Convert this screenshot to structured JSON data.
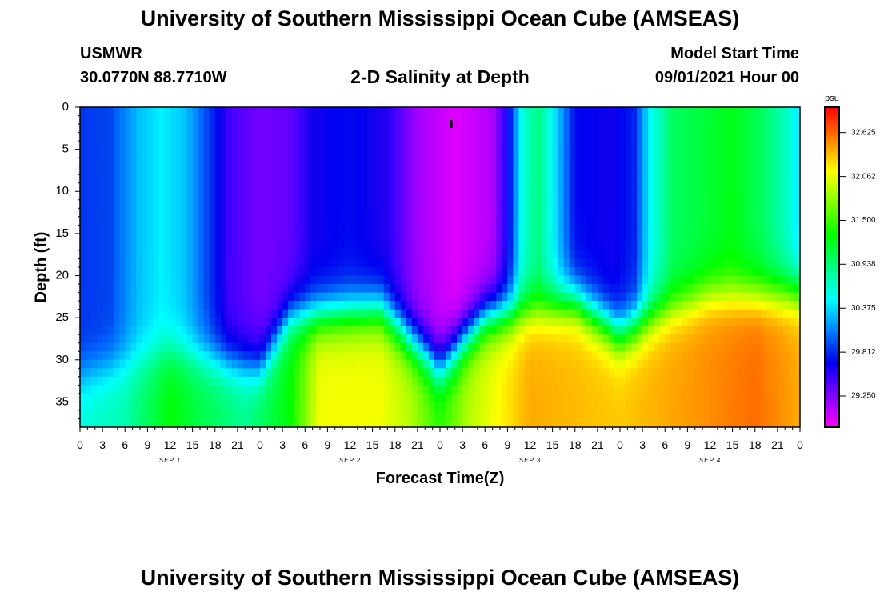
{
  "header": {
    "title": "University of Southern Mississippi Ocean Cube (AMSEAS)",
    "station": "USMWR",
    "coordinates": "30.0770N  88.7710W",
    "plot_title": "2-D Salinity at Depth",
    "model_start_label": "Model Start Time",
    "model_start_value": "09/01/2021 Hour 00"
  },
  "footer": {
    "title": "University of Southern Mississippi Ocean Cube (AMSEAS)"
  },
  "colors": {
    "background": "#ffffff",
    "frame": "#000000"
  },
  "chart_data": {
    "type": "heatmap",
    "title": "2-D Salinity at Depth",
    "xlabel": "Forecast Time(Z)",
    "ylabel": "Depth (ft)",
    "x_range_hours": [
      0,
      96
    ],
    "y_range_ft": [
      0,
      38
    ],
    "x_tick_hours": [
      0,
      3,
      6,
      9,
      12,
      15,
      18,
      21,
      24,
      27,
      30,
      33,
      36,
      39,
      42,
      45,
      48,
      51,
      54,
      57,
      60,
      63,
      66,
      69,
      72,
      75,
      78,
      81,
      84,
      87,
      90,
      93,
      96
    ],
    "x_tick_labels": [
      "0",
      "3",
      "6",
      "9",
      "12",
      "15",
      "18",
      "21",
      "0",
      "3",
      "6",
      "9",
      "12",
      "15",
      "18",
      "21",
      "0",
      "3",
      "6",
      "9",
      "12",
      "15",
      "18",
      "21",
      "0",
      "3",
      "6",
      "9",
      "12",
      "15",
      "18",
      "21",
      "0"
    ],
    "date_labels": [
      {
        "hour": 12,
        "text": "SEP 1"
      },
      {
        "hour": 36,
        "text": "SEP 2"
      },
      {
        "hour": 60,
        "text": "SEP 3"
      },
      {
        "hour": 84,
        "text": "SEP 4"
      }
    ],
    "y_ticks": [
      0,
      5,
      10,
      15,
      20,
      25,
      30,
      35
    ],
    "y_tick_labels": [
      "0",
      "5",
      "10",
      "15",
      "20",
      "25",
      "30",
      "35"
    ],
    "colorbar": {
      "unit": "psu",
      "range": [
        28.85,
        32.95
      ],
      "ticks": [
        32.625,
        32.062,
        31.5,
        30.938,
        30.375,
        29.812,
        29.25
      ],
      "tick_labels": [
        "32.625",
        "32.062",
        "31.500",
        "30.938",
        "30.375",
        "29.812",
        "29.250"
      ]
    },
    "marker": {
      "hour": 49.5,
      "depth_ft": 2
    },
    "surface_salinity_psu": [
      {
        "hour": 0,
        "value": 29.85
      },
      {
        "hour": 4,
        "value": 29.9
      },
      {
        "hour": 8,
        "value": 30.3
      },
      {
        "hour": 11,
        "value": 30.45
      },
      {
        "hour": 14,
        "value": 30.3
      },
      {
        "hour": 17,
        "value": 29.9
      },
      {
        "hour": 20,
        "value": 29.45
      },
      {
        "hour": 24,
        "value": 29.3
      },
      {
        "hour": 28,
        "value": 29.35
      },
      {
        "hour": 31,
        "value": 29.6
      },
      {
        "hour": 36,
        "value": 29.7
      },
      {
        "hour": 41,
        "value": 29.55
      },
      {
        "hour": 45,
        "value": 29.15
      },
      {
        "hour": 50,
        "value": 28.95
      },
      {
        "hour": 55,
        "value": 29.1
      },
      {
        "hour": 57,
        "value": 29.6
      },
      {
        "hour": 59,
        "value": 30.6
      },
      {
        "hour": 61,
        "value": 30.9
      },
      {
        "hour": 63,
        "value": 30.5
      },
      {
        "hour": 66,
        "value": 29.7
      },
      {
        "hour": 71,
        "value": 29.6
      },
      {
        "hour": 74,
        "value": 29.8
      },
      {
        "hour": 76,
        "value": 30.5
      },
      {
        "hour": 79,
        "value": 31.0
      },
      {
        "hour": 84,
        "value": 31.15
      },
      {
        "hour": 87,
        "value": 31.25
      },
      {
        "hour": 91,
        "value": 31.0
      },
      {
        "hour": 94,
        "value": 30.7
      },
      {
        "hour": 96,
        "value": 30.4
      }
    ],
    "bottom_salinity_psu": [
      {
        "hour": 0,
        "value": 30.6
      },
      {
        "hour": 6,
        "value": 30.75
      },
      {
        "hour": 12,
        "value": 31.3
      },
      {
        "hour": 16,
        "value": 31.1
      },
      {
        "hour": 22,
        "value": 30.85
      },
      {
        "hour": 28,
        "value": 31.3
      },
      {
        "hour": 32,
        "value": 32.1
      },
      {
        "hour": 40,
        "value": 32.1
      },
      {
        "hour": 44,
        "value": 31.9
      },
      {
        "hour": 48,
        "value": 31.45
      },
      {
        "hour": 52,
        "value": 31.9
      },
      {
        "hour": 60,
        "value": 32.4
      },
      {
        "hour": 72,
        "value": 32.3
      },
      {
        "hour": 84,
        "value": 32.5
      },
      {
        "hour": 90,
        "value": 32.6
      },
      {
        "hour": 96,
        "value": 32.4
      }
    ],
    "halocline_depth_ft": [
      {
        "hour": 0,
        "value": 32
      },
      {
        "hour": 12,
        "value": 29
      },
      {
        "hour": 24,
        "value": 31
      },
      {
        "hour": 28,
        "value": 25
      },
      {
        "hour": 40,
        "value": 24
      },
      {
        "hour": 48,
        "value": 31
      },
      {
        "hour": 54,
        "value": 25
      },
      {
        "hour": 66,
        "value": 23
      },
      {
        "hour": 72,
        "value": 27
      },
      {
        "hour": 78,
        "value": 24
      },
      {
        "hour": 84,
        "value": 22
      },
      {
        "hour": 96,
        "value": 22
      }
    ]
  }
}
